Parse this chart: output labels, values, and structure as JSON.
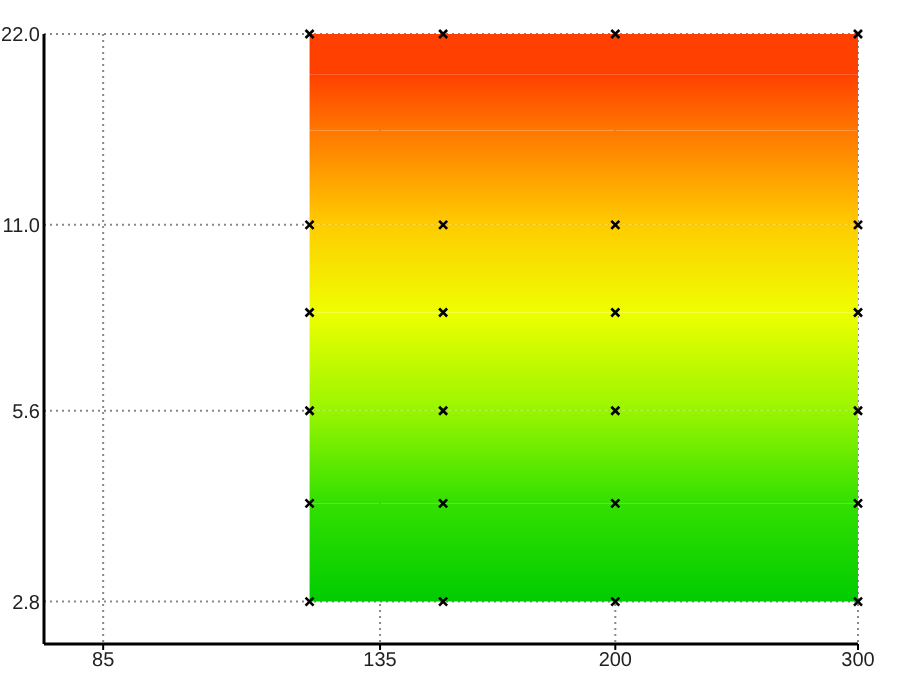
{
  "chart_data": {
    "type": "scatter",
    "log": "xy",
    "grid": true,
    "marker": "cross",
    "xlim": [
      77,
      300
    ],
    "xticks": [
      85,
      135,
      200,
      300
    ],
    "ylim": [
      2.4,
      22
    ],
    "yticks": [
      2.8,
      5.6,
      {
        "value": 11,
        "label": "11.0"
      },
      {
        "value": 22,
        "label": "22.0"
      }
    ],
    "bands": [
      {
        "axis": "y",
        "from": 2.8,
        "to": 4,
        "color": "#00cc00"
      },
      {
        "axis": "y",
        "from": 4,
        "to": 5.6,
        "color": "#33e000"
      },
      {
        "axis": "y",
        "from": 5.6,
        "to": 8,
        "color": "#99f500"
      },
      {
        "axis": "y",
        "from": 8,
        "to": 11,
        "color": "#eeff00"
      },
      {
        "axis": "y",
        "from": 11,
        "to": 15.5,
        "color": "#ffcc00"
      },
      {
        "axis": "y",
        "from": 15.5,
        "to": 19,
        "color": "#ff7700"
      },
      {
        "axis": "y",
        "from": 19,
        "to": 22,
        "color": "#ff4000"
      }
    ],
    "series": [
      {
        "color": "#000000",
        "x": [
          120,
          120,
          120,
          120,
          120,
          120,
          150,
          150,
          150,
          150,
          150,
          150,
          200,
          200,
          200,
          200,
          200,
          200,
          300,
          300,
          300,
          300,
          300,
          300
        ],
        "values": [
          2.8,
          4,
          5.6,
          8,
          11,
          22,
          2.8,
          4,
          5.6,
          8,
          11,
          22,
          2.8,
          4,
          5.6,
          8,
          11,
          22,
          2.8,
          4,
          5.6,
          8,
          11,
          22
        ]
      }
    ]
  }
}
